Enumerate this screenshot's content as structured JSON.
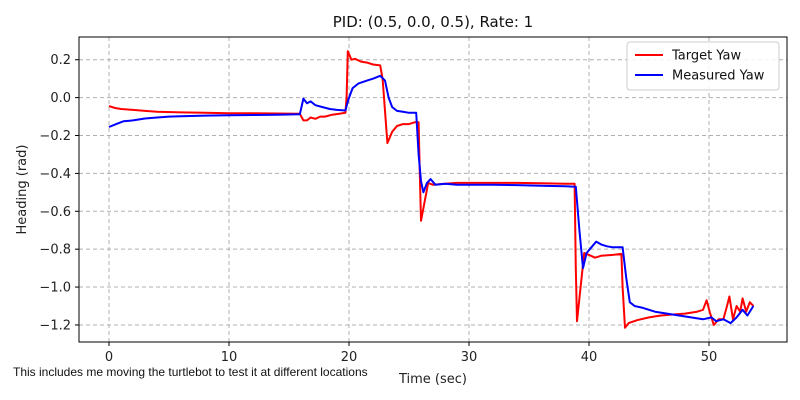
{
  "chart_data": {
    "type": "line",
    "title": "PID: (0.5, 0.0, 0.5), Rate: 1",
    "xlabel": "Time (sec)",
    "ylabel": "Heading (rad)",
    "xlim": [
      -2.5,
      56.5
    ],
    "ylim": [
      -1.29,
      0.32
    ],
    "xticks": [
      0,
      10,
      20,
      30,
      40,
      50
    ],
    "yticks": [
      0.2,
      0.0,
      -0.2,
      -0.4,
      -0.6,
      -0.8,
      -1.0,
      -1.2
    ],
    "ytick_labels": [
      "0.2",
      "0.0",
      "−0.2",
      "−0.4",
      "−0.6",
      "−0.8",
      "−1.0",
      "−1.2"
    ],
    "grid": true,
    "legend_position": "top-right",
    "series": [
      {
        "name": "Target Yaw",
        "color": "#ff0000",
        "points": [
          [
            0,
            -0.045
          ],
          [
            0.5,
            -0.055
          ],
          [
            1,
            -0.06
          ],
          [
            2,
            -0.065
          ],
          [
            3,
            -0.07
          ],
          [
            4,
            -0.075
          ],
          [
            6,
            -0.078
          ],
          [
            8,
            -0.08
          ],
          [
            10,
            -0.082
          ],
          [
            12,
            -0.083
          ],
          [
            14,
            -0.084
          ],
          [
            15.9,
            -0.085
          ],
          [
            16.2,
            -0.12
          ],
          [
            16.5,
            -0.12
          ],
          [
            16.8,
            -0.105
          ],
          [
            17.2,
            -0.112
          ],
          [
            17.6,
            -0.1
          ],
          [
            18,
            -0.1
          ],
          [
            18.6,
            -0.09
          ],
          [
            19.2,
            -0.085
          ],
          [
            19.7,
            -0.08
          ],
          [
            19.8,
            0.0
          ],
          [
            19.9,
            0.245
          ],
          [
            20.2,
            0.2
          ],
          [
            20.5,
            0.205
          ],
          [
            21,
            0.19
          ],
          [
            21.5,
            0.185
          ],
          [
            22,
            0.175
          ],
          [
            22.6,
            0.17
          ],
          [
            22.8,
            0.1
          ],
          [
            23.2,
            -0.24
          ],
          [
            23.6,
            -0.18
          ],
          [
            24,
            -0.15
          ],
          [
            24.5,
            -0.14
          ],
          [
            25,
            -0.14
          ],
          [
            25.5,
            -0.13
          ],
          [
            25.8,
            -0.13
          ],
          [
            25.9,
            -0.4
          ],
          [
            26.0,
            -0.65
          ],
          [
            26.3,
            -0.55
          ],
          [
            26.6,
            -0.45
          ],
          [
            27,
            -0.46
          ],
          [
            28,
            -0.455
          ],
          [
            29,
            -0.45
          ],
          [
            30,
            -0.45
          ],
          [
            32,
            -0.45
          ],
          [
            34,
            -0.45
          ],
          [
            36,
            -0.452
          ],
          [
            38,
            -0.455
          ],
          [
            38.8,
            -0.455
          ],
          [
            38.9,
            -0.9
          ],
          [
            39.0,
            -1.18
          ],
          [
            39.3,
            -1.0
          ],
          [
            39.6,
            -0.82
          ],
          [
            40,
            -0.83
          ],
          [
            40.5,
            -0.845
          ],
          [
            41,
            -0.835
          ],
          [
            42,
            -0.83
          ],
          [
            42.7,
            -0.825
          ],
          [
            42.8,
            -1.0
          ],
          [
            43.0,
            -1.215
          ],
          [
            43.3,
            -1.19
          ],
          [
            44,
            -1.175
          ],
          [
            45,
            -1.16
          ],
          [
            46,
            -1.15
          ],
          [
            47,
            -1.145
          ],
          [
            48,
            -1.14
          ],
          [
            49,
            -1.13
          ],
          [
            49.5,
            -1.12
          ],
          [
            49.8,
            -1.07
          ],
          [
            50.1,
            -1.14
          ],
          [
            50.4,
            -1.2
          ],
          [
            50.8,
            -1.17
          ],
          [
            51.2,
            -1.17
          ],
          [
            51.5,
            -1.1
          ],
          [
            51.7,
            -1.05
          ],
          [
            52,
            -1.17
          ],
          [
            52.3,
            -1.1
          ],
          [
            52.6,
            -1.13
          ],
          [
            52.8,
            -1.06
          ],
          [
            53.1,
            -1.13
          ],
          [
            53.4,
            -1.08
          ],
          [
            53.7,
            -1.1
          ]
        ]
      },
      {
        "name": "Measured Yaw",
        "color": "#0000ff",
        "points": [
          [
            0,
            -0.155
          ],
          [
            0.6,
            -0.14
          ],
          [
            1.2,
            -0.125
          ],
          [
            2,
            -0.12
          ],
          [
            3,
            -0.11
          ],
          [
            4,
            -0.105
          ],
          [
            5,
            -0.1
          ],
          [
            6,
            -0.098
          ],
          [
            8,
            -0.095
          ],
          [
            10,
            -0.093
          ],
          [
            12,
            -0.092
          ],
          [
            14,
            -0.09
          ],
          [
            15.9,
            -0.088
          ],
          [
            16.2,
            -0.005
          ],
          [
            16.5,
            -0.03
          ],
          [
            16.8,
            -0.02
          ],
          [
            17.2,
            -0.04
          ],
          [
            17.8,
            -0.05
          ],
          [
            18.4,
            -0.06
          ],
          [
            19,
            -0.065
          ],
          [
            19.7,
            -0.068
          ],
          [
            19.95,
            -0.01
          ],
          [
            20.3,
            0.05
          ],
          [
            20.8,
            0.075
          ],
          [
            21.5,
            0.09
          ],
          [
            22,
            0.1
          ],
          [
            22.6,
            0.115
          ],
          [
            23,
            0.09
          ],
          [
            23.3,
            0.0
          ],
          [
            23.6,
            -0.05
          ],
          [
            24,
            -0.07
          ],
          [
            24.5,
            -0.075
          ],
          [
            25,
            -0.08
          ],
          [
            25.6,
            -0.08
          ],
          [
            25.8,
            -0.3
          ],
          [
            26.0,
            -0.44
          ],
          [
            26.2,
            -0.5
          ],
          [
            26.5,
            -0.45
          ],
          [
            26.8,
            -0.43
          ],
          [
            27.2,
            -0.46
          ],
          [
            28,
            -0.455
          ],
          [
            29,
            -0.46
          ],
          [
            30,
            -0.46
          ],
          [
            32,
            -0.46
          ],
          [
            34,
            -0.462
          ],
          [
            36,
            -0.465
          ],
          [
            38,
            -0.468
          ],
          [
            38.9,
            -0.47
          ],
          [
            39.2,
            -0.7
          ],
          [
            39.5,
            -0.9
          ],
          [
            39.8,
            -0.82
          ],
          [
            40.2,
            -0.79
          ],
          [
            40.6,
            -0.76
          ],
          [
            41,
            -0.775
          ],
          [
            41.5,
            -0.785
          ],
          [
            42,
            -0.79
          ],
          [
            42.8,
            -0.79
          ],
          [
            43.1,
            -0.95
          ],
          [
            43.4,
            -1.08
          ],
          [
            43.8,
            -1.1
          ],
          [
            44.5,
            -1.11
          ],
          [
            45.5,
            -1.13
          ],
          [
            46.5,
            -1.14
          ],
          [
            47.5,
            -1.15
          ],
          [
            48.5,
            -1.16
          ],
          [
            49.5,
            -1.17
          ],
          [
            50.2,
            -1.16
          ],
          [
            50.6,
            -1.18
          ],
          [
            51.2,
            -1.17
          ],
          [
            51.8,
            -1.19
          ],
          [
            52.3,
            -1.16
          ],
          [
            52.8,
            -1.12
          ],
          [
            53.2,
            -1.15
          ],
          [
            53.7,
            -1.1
          ]
        ]
      }
    ]
  },
  "note": {
    "text": "This includes me moving the turtlebot to test it at different locations"
  }
}
